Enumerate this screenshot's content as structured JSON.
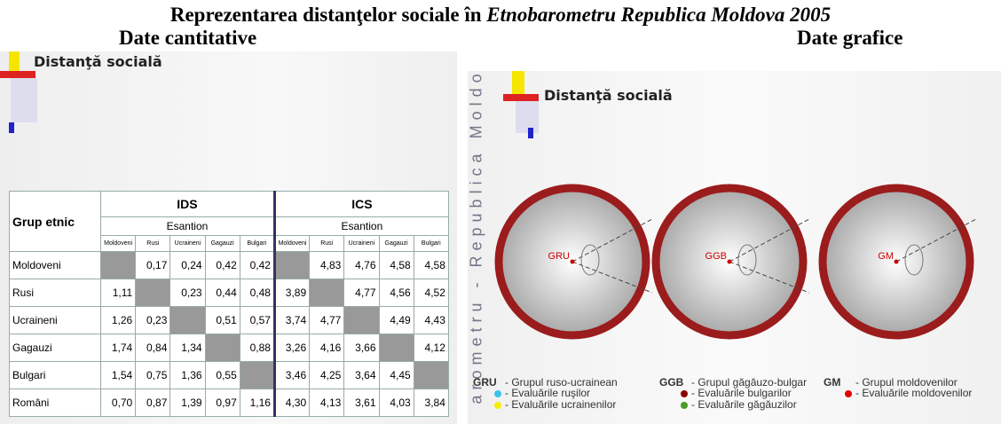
{
  "title": {
    "main": "Reprezentarea distanţelor sociale în",
    "italic": "Etnobarometru Republica Moldova 2005"
  },
  "left": {
    "heading": "Date cantitative",
    "slide_title": "Distanţă socială",
    "table": {
      "corner": "Grup etnic",
      "groups": [
        "IDS",
        "ICS"
      ],
      "sample": [
        "Esantion",
        "Esantion"
      ],
      "columns": [
        "Moldoveni",
        "Rusi",
        "Ucraineni",
        "Gagauzi",
        "Bulgari",
        "Moldoveni",
        "Rusi",
        "Ucraineni",
        "Gagauzi",
        "Bulgari"
      ],
      "rows": [
        [
          "Moldoveni",
          null,
          "0,17",
          "0,24",
          "0,42",
          "0,42",
          null,
          "4,83",
          "4,76",
          "4,58",
          "4,58"
        ],
        [
          "Rusi",
          "1,11",
          null,
          "0,23",
          "0,44",
          "0,48",
          "3,89",
          null,
          "4,77",
          "4,56",
          "4,52"
        ],
        [
          "Ucraineni",
          "1,26",
          "0,23",
          null,
          "0,51",
          "0,57",
          "3,74",
          "4,77",
          null,
          "4,49",
          "4,43"
        ],
        [
          "Gagauzi",
          "1,74",
          "0,84",
          "1,34",
          null,
          "0,88",
          "3,26",
          "4,16",
          "3,66",
          null,
          "4,12"
        ],
        [
          "Bulgari",
          "1,54",
          "0,75",
          "1,36",
          "0,55",
          null,
          "3,46",
          "4,25",
          "3,64",
          "4,45",
          null
        ],
        [
          "Români",
          "0,70",
          "0,87",
          "1,39",
          "0,97",
          "1,16",
          "4,30",
          "4,13",
          "3,61",
          "4,03",
          "3,84"
        ]
      ]
    }
  },
  "right": {
    "heading": "Date grafice",
    "slide_title": "Distanţă socială",
    "side_text": "arometru - Republica Moldova",
    "circles": [
      "GRU",
      "GGB",
      "GM"
    ],
    "legend": [
      {
        "code": "GRU",
        "text": "- Grupul ruso-ucrainean",
        "items": [
          "- Evaluările ruşilor",
          "- Evaluările ucrainenilor"
        ]
      },
      {
        "code": "GGB",
        "text": "- Grupul găgăuzo-bulgar",
        "items": [
          "- Evaluările bulgarilor",
          "- Evaluările găgăuzilor"
        ]
      },
      {
        "code": "GM",
        "text": "- Grupul moldovenilor",
        "items": [
          "- Evaluările moldovenilor"
        ]
      }
    ]
  }
}
